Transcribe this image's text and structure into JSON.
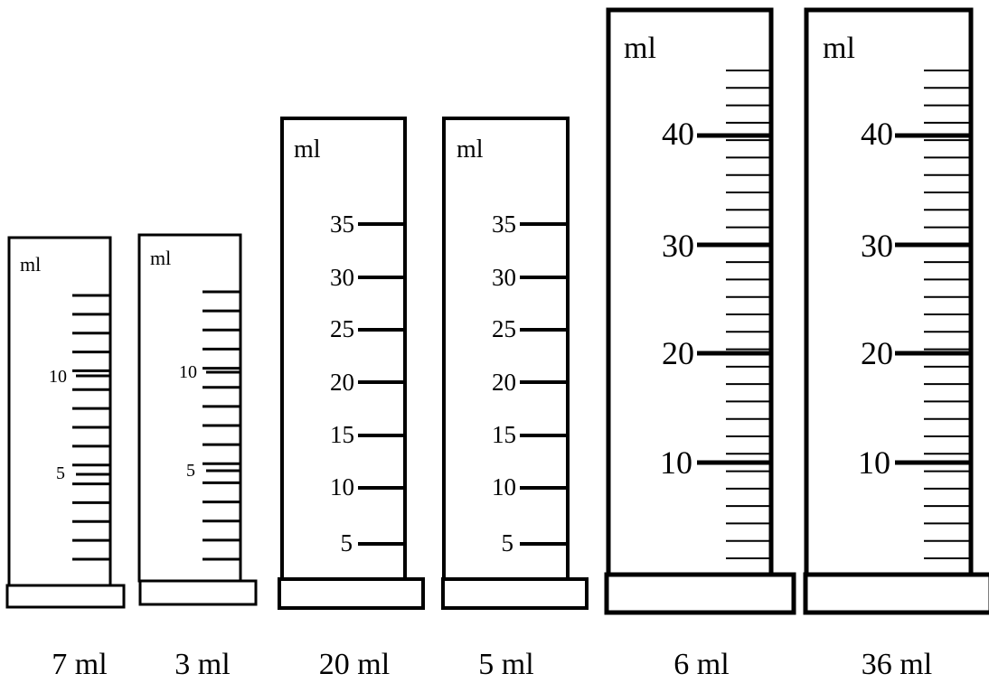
{
  "cylinders": [
    {
      "unit": "ml",
      "caption": "7 ml",
      "labels": [
        "5",
        "10"
      ]
    },
    {
      "unit": "ml",
      "caption": "3 ml",
      "labels": [
        "5",
        "10"
      ]
    },
    {
      "unit": "ml",
      "caption": "20 ml",
      "labels": [
        "5",
        "10",
        "15",
        "20",
        "25",
        "30",
        "35"
      ]
    },
    {
      "unit": "ml",
      "caption": "5 ml",
      "labels": [
        "5",
        "10",
        "15",
        "20",
        "25",
        "30",
        "35"
      ]
    },
    {
      "unit": "ml",
      "caption": "6 ml",
      "labels": [
        "10",
        "20",
        "30",
        "40"
      ]
    },
    {
      "unit": "ml",
      "caption": "36 ml",
      "labels": [
        "10",
        "20",
        "30",
        "40"
      ]
    }
  ]
}
